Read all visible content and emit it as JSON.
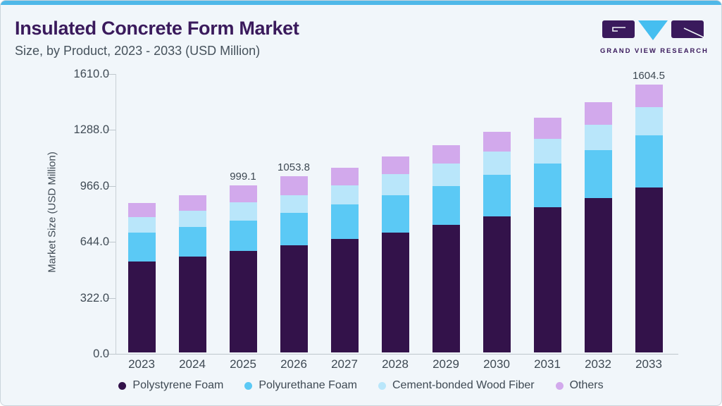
{
  "header": {
    "title": "Insulated Concrete Form Market",
    "subtitle": "Size, by Product, 2023 - 2033 (USD Million)"
  },
  "logo": {
    "text": "GRAND VIEW RESEARCH"
  },
  "colors": {
    "accent_bar": "#4FB8E8",
    "card_background": "#F1F6FA",
    "title_text": "#3A1A5C",
    "body_text": "#404B55",
    "axis_line": "#C9D0D6"
  },
  "chart_data": {
    "type": "bar",
    "stacked": true,
    "title": "Insulated Concrete Form Market Size, by Product, 2023 - 2033 (USD Million)",
    "xlabel": "",
    "ylabel": "Market Size (USD Million)",
    "ylim": [
      0,
      1610
    ],
    "y_ticks": [
      0.0,
      322.0,
      644.0,
      966.0,
      1288.0,
      1610.0
    ],
    "grid": false,
    "legend_position": "bottom",
    "categories": [
      "2023",
      "2024",
      "2025",
      "2026",
      "2027",
      "2028",
      "2029",
      "2030",
      "2031",
      "2032",
      "2033"
    ],
    "series": [
      {
        "name": "Polystyrene Foam",
        "color": "#33124A",
        "values": [
          543.3,
          575.5,
          606.7,
          641.7,
          679.7,
          717.7,
          764.2,
          813.6,
          868.5,
          925.9,
          986.7
        ]
      },
      {
        "name": "Polyurethane Foam",
        "color": "#5BC9F5",
        "values": [
          174.4,
          174.7,
          181.6,
          195.6,
          206.9,
          225.1,
          230.9,
          249.1,
          264.3,
          284.6,
          312.4
        ]
      },
      {
        "name": "Cement-bonded Wood Fiber",
        "color": "#B9E6FA",
        "values": [
          92.9,
          99.7,
          109.7,
          105.5,
          114.0,
          124.1,
          137.7,
          140.6,
          147.7,
          154.5,
          168.9
        ]
      },
      {
        "name": "Others",
        "color": "#D2A9EC",
        "values": [
          84.5,
          92.9,
          101.1,
          111.0,
          105.6,
          105.5,
          107.2,
          116.9,
          124.2,
          133.8,
          136.5
        ]
      }
    ],
    "annotations": [
      {
        "category": "2025",
        "label": "999.1"
      },
      {
        "category": "2026",
        "label": "1053.8"
      },
      {
        "category": "2033",
        "label": "1604.5"
      }
    ]
  }
}
